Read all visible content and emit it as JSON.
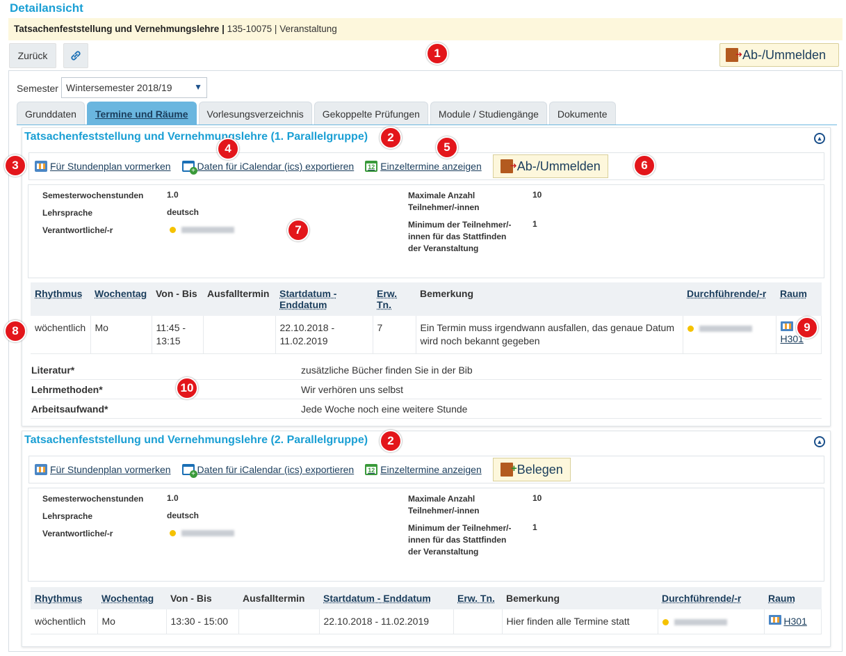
{
  "page": {
    "heading": "Detailansicht",
    "course_title": "Tatsachenfeststellung und Vernehmungslehre",
    "course_separator": "|",
    "course_ref": "135-10075 | Veranstaltung"
  },
  "toolbar": {
    "back_label": "Zurück",
    "register_label": "Ab-/Ummelden"
  },
  "semester": {
    "label": "Semester",
    "selected": "Wintersemester 2018/19"
  },
  "tabs": [
    "Grunddaten",
    "Termine und Räume",
    "Vorlesungsverzeichnis",
    "Gekoppelte Prüfungen",
    "Module / Studiengänge",
    "Dokumente"
  ],
  "badges": [
    "1",
    "2",
    "2",
    "3",
    "4",
    "5",
    "6",
    "7",
    "8",
    "9",
    "10"
  ],
  "groups": [
    {
      "title": "Tatsachenfeststellung und Vernehmungslehre (1. Parallelgruppe)",
      "actions": {
        "plan": "Für Stundenplan vormerken",
        "ics": "Daten für iCalendar (ics) exportieren",
        "single": "Einzeltermine anzeigen",
        "button": "Ab-/Ummelden"
      },
      "details": {
        "sws_label": "Semesterwochenstunden",
        "sws_value": "1.0",
        "lang_label": "Lehrsprache",
        "lang_value": "deutsch",
        "resp_label": "Verantwortliche/-r",
        "max_label": "Maximale Anzahl Teilnehmer/-innen",
        "max_value": "10",
        "min_label": "Minimum der Teilnehmer/-innen für das Stattfinden der Veranstaltung",
        "min_value": "1"
      },
      "schedule": {
        "headers": [
          "Rhythmus",
          "Wochentag",
          "Von - Bis",
          "Ausfalltermin",
          "Startdatum - Enddatum",
          "Erw. Tn.",
          "Bemerkung",
          "Durchführende/-r",
          "Raum"
        ],
        "row": {
          "rhythm": "wöchentlich",
          "day": "Mo",
          "time": "11:45 - 13:15",
          "cancel": "",
          "dates": "22.10.2018 - 11.02.2019",
          "expected": "7",
          "note": "Ein Termin muss irgendwann ausfallen, das genaue Datum wird noch bekannt gegeben",
          "room": "H301"
        }
      },
      "extras": [
        {
          "key": "Literatur*",
          "value": "zusätzliche Bücher finden Sie in der Bib"
        },
        {
          "key": "Lehrmethoden*",
          "value": "Wir verhören uns selbst"
        },
        {
          "key": "Arbeitsaufwand*",
          "value": "Jede Woche noch eine weitere Stunde"
        }
      ]
    },
    {
      "title": "Tatsachenfeststellung und Vernehmungslehre (2. Parallelgruppe)",
      "actions": {
        "plan": "Für Stundenplan vormerken",
        "ics": "Daten für iCalendar (ics) exportieren",
        "single": "Einzeltermine anzeigen",
        "button": "Belegen"
      },
      "details": {
        "sws_label": "Semesterwochenstunden",
        "sws_value": "1.0",
        "lang_label": "Lehrsprache",
        "lang_value": "deutsch",
        "resp_label": "Verantwortliche/-r",
        "max_label": "Maximale Anzahl Teilnehmer/-innen",
        "max_value": "10",
        "min_label": "Minimum der Teilnehmer/-innen für das Stattfinden der Veranstaltung",
        "min_value": "1"
      },
      "schedule": {
        "headers": [
          "Rhythmus",
          "Wochentag",
          "Von - Bis",
          "Ausfalltermin",
          "Startdatum - Enddatum",
          "Erw. Tn.",
          "Bemerkung",
          "Durchführende/-r",
          "Raum"
        ],
        "row": {
          "rhythm": "wöchentlich",
          "day": "Mo",
          "time": "13:30 - 15:00",
          "cancel": "",
          "dates": "22.10.2018 - 11.02.2019",
          "expected": "",
          "note": "Hier finden alle Termine statt",
          "room": "H301"
        }
      }
    }
  ],
  "colors": {
    "accent": "#1a9fd4",
    "badge": "#e3161b",
    "highlight_bg": "#fdf7dc",
    "tab_active": "#6ab6df"
  }
}
